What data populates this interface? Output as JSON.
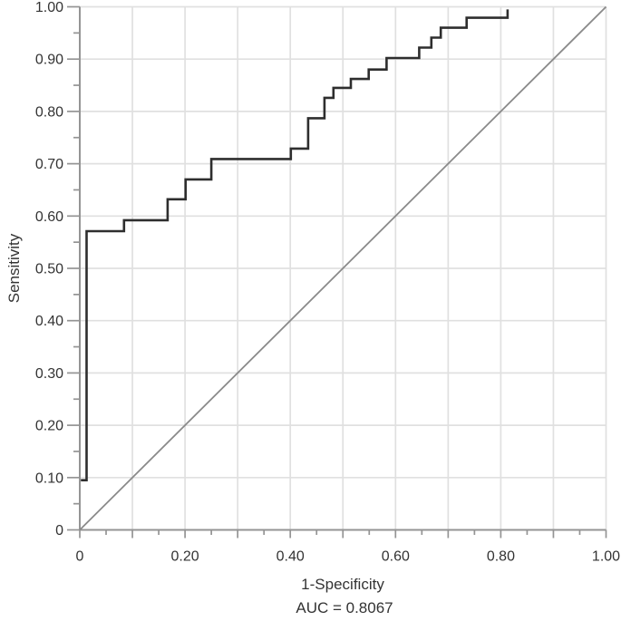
{
  "chart_data": {
    "type": "line",
    "subtype": "roc-step-curve",
    "title": "",
    "xlabel": "1-Specificity",
    "ylabel": "Sensitivity",
    "annotation": "AUC = 0.8067",
    "auc_value": "0.8067",
    "xlim": [
      0,
      1
    ],
    "ylim": [
      0,
      1
    ],
    "grid": true,
    "grid_step": 0.1,
    "minor_tick_step": 0.05,
    "legend": "none",
    "x_ticks": {
      "values": [
        0,
        0.2,
        0.4,
        0.6,
        0.8,
        1.0
      ],
      "labels": [
        "0",
        "0.20",
        "0.40",
        "0.60",
        "0.80",
        "1.00"
      ]
    },
    "y_ticks": {
      "values": [
        0,
        0.1,
        0.2,
        0.3,
        0.4,
        0.5,
        0.6,
        0.7,
        0.8,
        0.9,
        1.0
      ],
      "labels": [
        "0",
        "0.10",
        "0.20",
        "0.30",
        "0.40",
        "0.50",
        "0.60",
        "0.70",
        "0.80",
        "0.90",
        "1.00"
      ]
    },
    "series": [
      {
        "name": "roc-curve",
        "style": "step",
        "color": "#2e2e2e",
        "width": 2.6,
        "points": [
          [
            0.002,
            0.095
          ],
          [
            0.013,
            0.095
          ],
          [
            0.013,
            0.571
          ],
          [
            0.084,
            0.571
          ],
          [
            0.084,
            0.592
          ],
          [
            0.167,
            0.592
          ],
          [
            0.167,
            0.632
          ],
          [
            0.201,
            0.632
          ],
          [
            0.201,
            0.67
          ],
          [
            0.25,
            0.67
          ],
          [
            0.25,
            0.709
          ],
          [
            0.401,
            0.709
          ],
          [
            0.401,
            0.729
          ],
          [
            0.434,
            0.729
          ],
          [
            0.434,
            0.787
          ],
          [
            0.465,
            0.787
          ],
          [
            0.465,
            0.826
          ],
          [
            0.482,
            0.826
          ],
          [
            0.482,
            0.845
          ],
          [
            0.515,
            0.845
          ],
          [
            0.515,
            0.862
          ],
          [
            0.549,
            0.862
          ],
          [
            0.549,
            0.88
          ],
          [
            0.583,
            0.88
          ],
          [
            0.583,
            0.902
          ],
          [
            0.645,
            0.902
          ],
          [
            0.645,
            0.922
          ],
          [
            0.668,
            0.922
          ],
          [
            0.668,
            0.941
          ],
          [
            0.686,
            0.941
          ],
          [
            0.686,
            0.96
          ],
          [
            0.735,
            0.96
          ],
          [
            0.735,
            0.979
          ],
          [
            0.813,
            0.979
          ],
          [
            0.813,
            0.995
          ]
        ]
      },
      {
        "name": "reference-diagonal",
        "style": "straight",
        "color": "#8a8a8a",
        "width": 1.8,
        "points": [
          [
            0,
            0
          ],
          [
            1,
            1
          ]
        ]
      }
    ],
    "colors": {
      "curve": "#2e2e2e",
      "reference_line": "#8a8a8a",
      "grid": "#e0e0e0",
      "axis": "#949494",
      "text": "#333333",
      "background": "#ffffff"
    }
  }
}
